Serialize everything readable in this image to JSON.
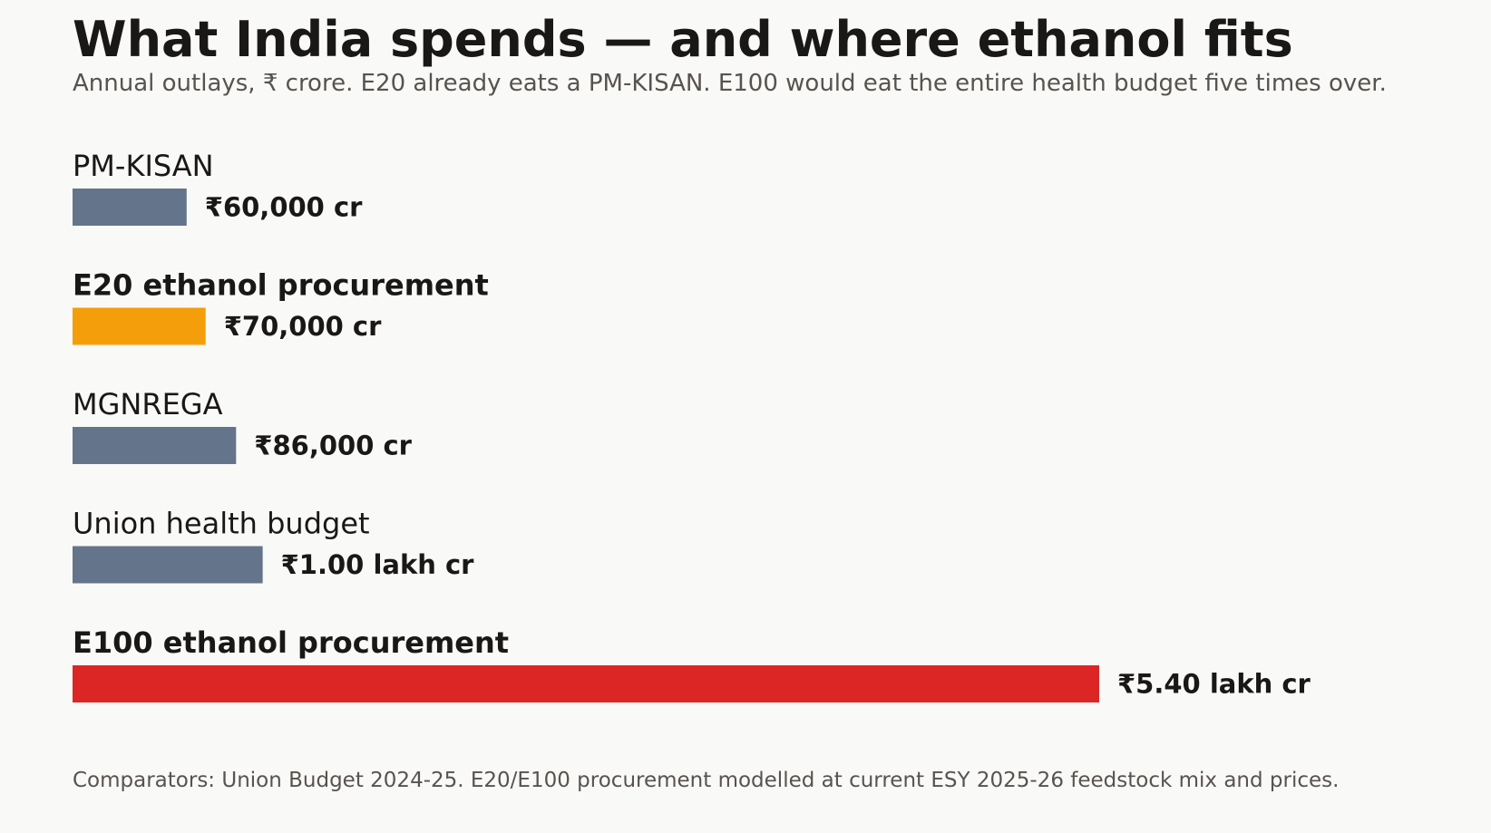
{
  "chart_data": {
    "type": "bar",
    "orientation": "horizontal",
    "title": "What India spends — and where ethanol fits",
    "subtitle": "Annual outlays, ₹ crore. E20 already eats a PM-KISAN. E100 would eat the entire health budget five times over.",
    "footnote": "Comparators: Union Budget 2024-25. E20/E100 procurement modelled at current ESY 2025-26 feedstock mix and prices.",
    "unit": "₹ crore",
    "categories": [
      "PM-KISAN",
      "E20 ethanol procurement",
      "MGNREGA",
      "Union health budget",
      "E100 ethanol procurement"
    ],
    "values": [
      60000,
      70000,
      86000,
      100000,
      540000
    ],
    "value_labels": [
      "₹60,000 cr",
      "₹70,000 cr",
      "₹86,000 cr",
      "₹1.00 lakh cr",
      "₹5.40 lakh cr"
    ],
    "bold_categories": [
      false,
      true,
      false,
      false,
      true
    ],
    "colors": [
      "#64748b",
      "#f59e0b",
      "#64748b",
      "#64748b",
      "#dc2626"
    ],
    "xlim": [
      0,
      540000
    ],
    "grid": false,
    "legend": "none"
  }
}
